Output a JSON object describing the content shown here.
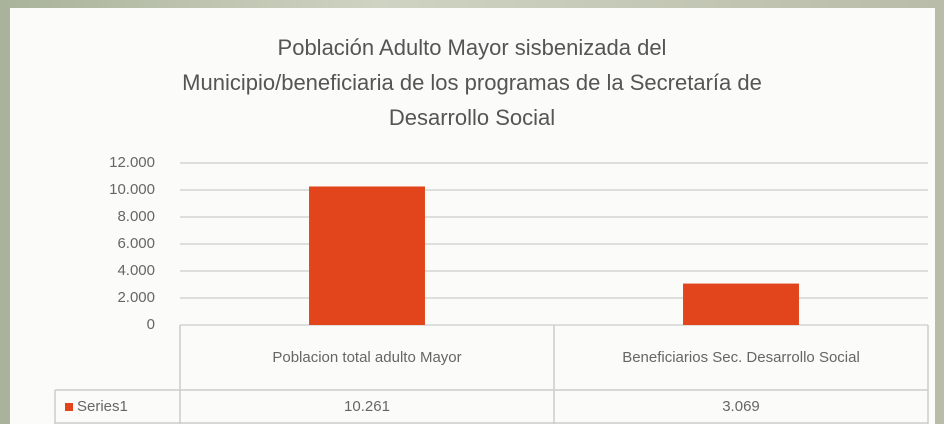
{
  "chart_data": {
    "type": "bar",
    "title": "Población Adulto Mayor sisbenizada del Municipio/beneficiaria de los programas de la Secretaría de Desarrollo Social",
    "categories": [
      "Poblacion total adulto Mayor",
      "Beneficiarios Sec. Desarrollo Social"
    ],
    "series": [
      {
        "name": "Series1",
        "color": "#e2451c",
        "values": [
          10261,
          3069
        ],
        "value_labels": [
          "10.261",
          "3.069"
        ]
      }
    ],
    "ylim": [
      0,
      12000
    ],
    "yticks": [
      0,
      {
        "value": 2000,
        "label": "2.000"
      },
      {
        "value": 4000,
        "label": "4.000"
      },
      {
        "value": 6000,
        "label": "6.000"
      },
      {
        "value": 8000,
        "label": "8.000"
      },
      {
        "value": 10000,
        "label": "10.000"
      },
      {
        "value": 12000,
        "label": "12.000"
      }
    ],
    "grid": true
  }
}
